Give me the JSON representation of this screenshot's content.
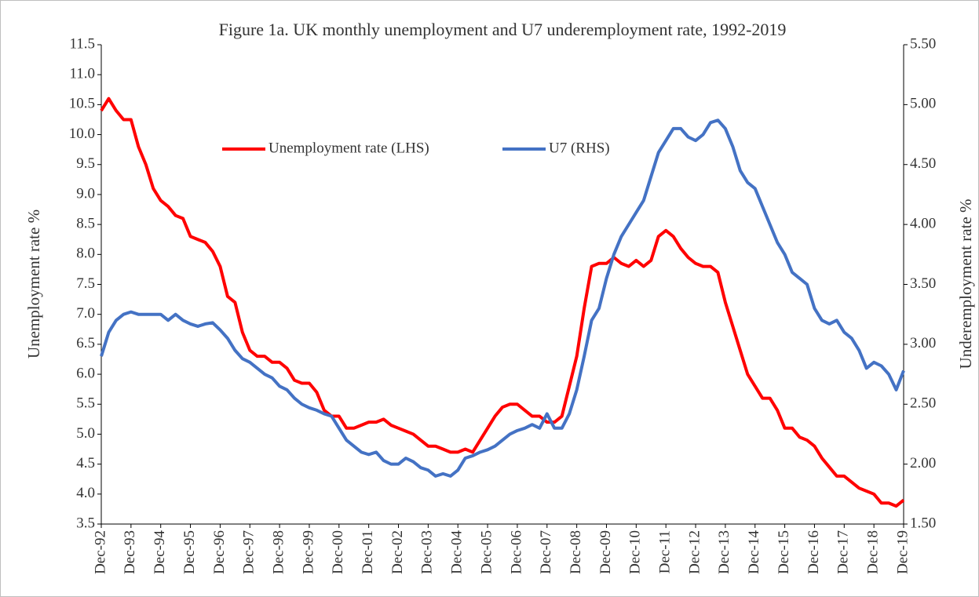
{
  "chart_data": {
    "type": "line",
    "title": "Figure 1a.  UK monthly unemployment and U7 underemployment rate, 1992-2019",
    "ylabel": "Unemployment rate %",
    "y2label": "Underemployment rate %",
    "categories": [
      "Dec-92",
      null,
      null,
      null,
      "Dec-93",
      null,
      null,
      null,
      "Dec-94",
      null,
      null,
      null,
      "Dec-95",
      null,
      null,
      null,
      "Dec-96",
      null,
      null,
      null,
      "Dec-97",
      null,
      null,
      null,
      "Dec-98",
      null,
      null,
      null,
      "Dec-99",
      null,
      null,
      null,
      "Dec-00",
      null,
      null,
      null,
      "Dec-01",
      null,
      null,
      null,
      "Dec-02",
      null,
      null,
      null,
      "Dec-03",
      null,
      null,
      null,
      "Dec-04",
      null,
      null,
      null,
      "Dec-05",
      null,
      null,
      null,
      "Dec-06",
      null,
      null,
      null,
      "Dec-07",
      null,
      null,
      null,
      "Dec-08",
      null,
      null,
      null,
      "Dec-09",
      null,
      null,
      null,
      "Dec-10",
      null,
      null,
      null,
      "Dec-11",
      null,
      null,
      null,
      "Dec-12",
      null,
      null,
      null,
      "Dec-13",
      null,
      null,
      null,
      "Dec-14",
      null,
      null,
      null,
      "Dec-15",
      null,
      null,
      null,
      "Dec-16",
      null,
      null,
      null,
      "Dec-17",
      null,
      null,
      null,
      "Dec-18",
      null,
      null,
      null,
      "Dec-19"
    ],
    "series": [
      {
        "name": "Unemployment rate (LHS)",
        "color": "#ff0000",
        "axis": "y",
        "values": [
          10.4,
          10.6,
          10.4,
          10.25,
          10.25,
          9.8,
          9.5,
          9.1,
          8.9,
          8.8,
          8.65,
          8.6,
          8.3,
          8.25,
          8.2,
          8.05,
          7.8,
          7.3,
          7.2,
          6.7,
          6.4,
          6.3,
          6.3,
          6.2,
          6.2,
          6.1,
          5.9,
          5.85,
          5.85,
          5.7,
          5.4,
          5.3,
          5.3,
          5.1,
          5.1,
          5.15,
          5.2,
          5.2,
          5.25,
          5.15,
          5.1,
          5.05,
          5.0,
          4.9,
          4.8,
          4.8,
          4.75,
          4.7,
          4.7,
          4.75,
          4.7,
          4.9,
          5.1,
          5.3,
          5.45,
          5.5,
          5.5,
          5.4,
          5.3,
          5.3,
          5.2,
          5.2,
          5.3,
          5.8,
          6.3,
          7.1,
          7.8,
          7.85,
          7.85,
          7.95,
          7.85,
          7.8,
          7.9,
          7.8,
          7.9,
          8.3,
          8.4,
          8.3,
          8.1,
          7.95,
          7.85,
          7.8,
          7.8,
          7.7,
          7.2,
          6.8,
          6.4,
          6.0,
          5.8,
          5.6,
          5.6,
          5.4,
          5.1,
          5.1,
          4.95,
          4.9,
          4.8,
          4.6,
          4.45,
          4.3,
          4.3,
          4.2,
          4.1,
          4.05,
          4.0,
          3.85,
          3.85,
          3.8,
          3.9
        ]
      },
      {
        "name": "U7 (RHS)",
        "color": "#4472c4",
        "axis": "y2",
        "values": [
          2.9,
          3.1,
          3.2,
          3.25,
          3.27,
          3.25,
          3.25,
          3.25,
          3.25,
          3.2,
          3.25,
          3.2,
          3.17,
          3.15,
          3.17,
          3.18,
          3.12,
          3.05,
          2.95,
          2.88,
          2.85,
          2.8,
          2.75,
          2.72,
          2.65,
          2.62,
          2.55,
          2.5,
          2.47,
          2.45,
          2.42,
          2.4,
          2.3,
          2.2,
          2.15,
          2.1,
          2.08,
          2.1,
          2.03,
          2.0,
          2.0,
          2.05,
          2.02,
          1.97,
          1.95,
          1.9,
          1.92,
          1.9,
          1.95,
          2.05,
          2.07,
          2.1,
          2.12,
          2.15,
          2.2,
          2.25,
          2.28,
          2.3,
          2.33,
          2.3,
          2.42,
          2.3,
          2.3,
          2.42,
          2.62,
          2.9,
          3.2,
          3.3,
          3.55,
          3.75,
          3.9,
          4.0,
          4.1,
          4.2,
          4.4,
          4.6,
          4.7,
          4.8,
          4.8,
          4.73,
          4.7,
          4.75,
          4.85,
          4.87,
          4.8,
          4.65,
          4.45,
          4.35,
          4.3,
          4.15,
          4.0,
          3.85,
          3.75,
          3.6,
          3.55,
          3.5,
          3.3,
          3.2,
          3.17,
          3.2,
          3.1,
          3.05,
          2.95,
          2.8,
          2.85,
          2.82,
          2.75,
          2.62,
          2.78
        ]
      }
    ],
    "ylim": [
      3.5,
      11.5
    ],
    "yticks": [
      3.5,
      {
        "value": 4,
        "label": "4.0"
      },
      4.5,
      {
        "value": 5,
        "label": "5.0"
      },
      5.5,
      {
        "value": 6,
        "label": "6.0"
      },
      6.5,
      {
        "value": 7,
        "label": "7.0"
      },
      7.5,
      {
        "value": 8,
        "label": "8.0"
      },
      8.5,
      {
        "value": 9,
        "label": "9.0"
      },
      9.5,
      {
        "value": 10,
        "label": "10.0"
      },
      10.5,
      {
        "value": 11,
        "label": "11.0"
      },
      11.5
    ],
    "y2lim": [
      1.5,
      5.5
    ],
    "y2ticks": [
      {
        "value": 1.5,
        "label": "1.50"
      },
      {
        "value": 2,
        "label": "2.00"
      },
      {
        "value": 2.5,
        "label": "2.50"
      },
      {
        "value": 3,
        "label": "3.00"
      },
      {
        "value": 3.5,
        "label": "3.50"
      },
      {
        "value": 4,
        "label": "4.00"
      },
      {
        "value": 4.5,
        "label": "4.50"
      },
      {
        "value": 5,
        "label": "5.00"
      },
      {
        "value": 5.5,
        "label": "5.50"
      }
    ]
  }
}
